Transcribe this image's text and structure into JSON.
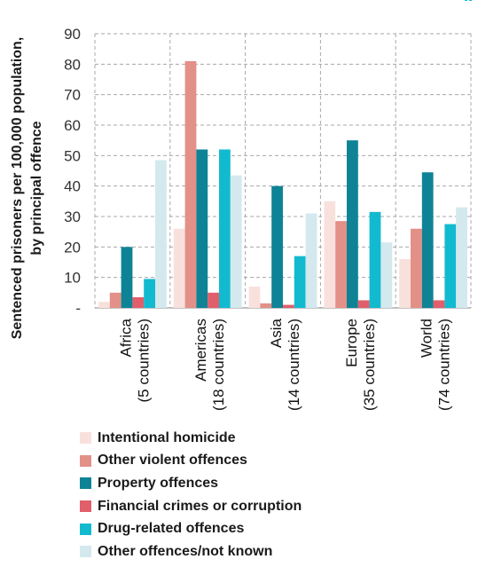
{
  "chart_data": {
    "type": "bar",
    "ylabel_lines": [
      "Sentenced prisoners per 100,000 population,",
      "by principal offence"
    ],
    "ylim": [
      0,
      90
    ],
    "yticks": [
      {
        "value": 0,
        "label": "-"
      },
      {
        "value": 10,
        "label": "10"
      },
      {
        "value": 20,
        "label": "20"
      },
      {
        "value": 30,
        "label": "30"
      },
      {
        "value": 40,
        "label": "40"
      },
      {
        "value": 50,
        "label": "50"
      },
      {
        "value": 60,
        "label": "60"
      },
      {
        "value": 70,
        "label": "70"
      },
      {
        "value": 80,
        "label": "80"
      },
      {
        "value": 90,
        "label": "90"
      }
    ],
    "grid": true,
    "categories": [
      {
        "line1": "Africa",
        "line2": "(5 countries)"
      },
      {
        "line1": "Americas",
        "line2": "(18 countries)"
      },
      {
        "line1": "Asia",
        "line2": "(14 countries)"
      },
      {
        "line1": "Europe",
        "line2": "(35 countries)"
      },
      {
        "line1": "World",
        "line2": "(74 countries)"
      }
    ],
    "series": [
      {
        "name": "Intentional homicide",
        "color": "#f8e1dc",
        "values": [
          2,
          26,
          7,
          35,
          16
        ]
      },
      {
        "name": "Other violent offences",
        "color": "#e39088",
        "values": [
          5,
          81,
          1.5,
          28.5,
          26
        ]
      },
      {
        "name": "Property offences",
        "color": "#0e8395",
        "values": [
          20,
          52,
          40,
          55,
          44.5
        ]
      },
      {
        "name": "Financial crimes or corruption",
        "color": "#e05f6b",
        "values": [
          3.5,
          5,
          1,
          2.5,
          2.5
        ]
      },
      {
        "name": "Drug-related offences",
        "color": "#12bad0",
        "values": [
          9.5,
          52,
          17,
          31.5,
          27.5
        ]
      },
      {
        "name": "Other offences/not known",
        "color": "#d3e9ee",
        "values": [
          48.5,
          43.5,
          31,
          21.5,
          33
        ]
      }
    ],
    "legend_position": "bottom-left"
  }
}
